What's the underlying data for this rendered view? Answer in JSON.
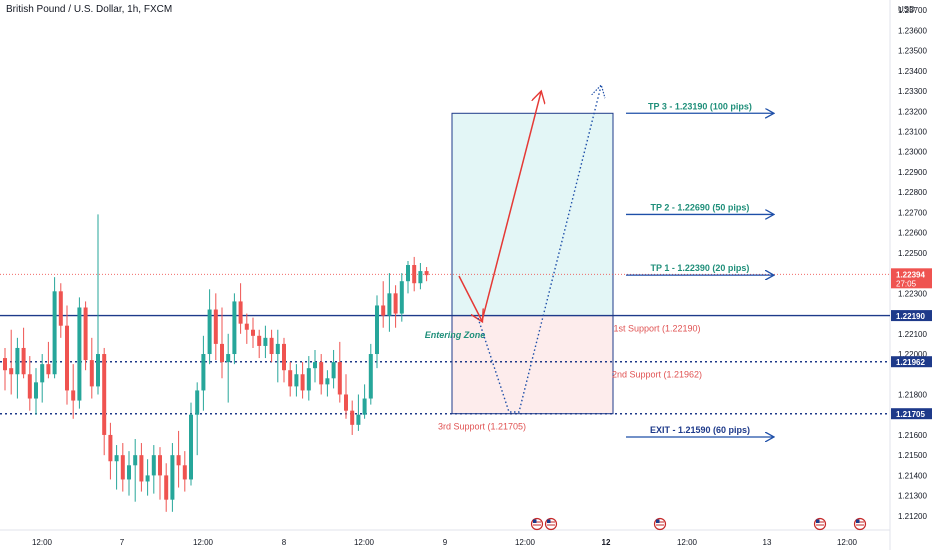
{
  "header": {
    "title": "British Pound / U.S. Dollar, 1h, FXCM",
    "currency": "USD"
  },
  "colors": {
    "bull": "#26a69a",
    "bear": "#ef5350",
    "navy": "#1e3a8a",
    "arrow": "#1e4fa8",
    "tp_text": "#1f8f7a",
    "support_text": "#e05252",
    "red_arrow": "#e53935",
    "zone_top": "#e3f6f6",
    "zone_bottom": "#fdecec",
    "badge": "#1e3a8a"
  },
  "chart_data": {
    "type": "candlestick",
    "symbol": "GBPUSD",
    "timeframe": "1h",
    "ylim": [
      1.2114,
      1.2375
    ],
    "y_ticks": [
      "1.23700",
      "1.23600",
      "1.23500",
      "1.23400",
      "1.23300",
      "1.23200",
      "1.23100",
      "1.23000",
      "1.22900",
      "1.22800",
      "1.22700",
      "1.22600",
      "1.22500",
      "1.22300",
      "1.22100",
      "1.22000",
      "1.21800",
      "1.21600",
      "1.21500",
      "1.21400",
      "1.21300",
      "1.21200"
    ],
    "x_ticks": [
      "12:00",
      "7",
      "12:00",
      "8",
      "12:00",
      "9",
      "12:00",
      "12",
      "12:00",
      "13",
      "12:00"
    ],
    "levels": [
      {
        "name": "TP 3 - 1.23190 (100 pips)",
        "value": 1.2319,
        "role": "tp"
      },
      {
        "name": "TP 2 - 1.22690 (50 pips)",
        "value": 1.2269,
        "role": "tp"
      },
      {
        "name": "TP 1 - 1.22390 (20 pips)",
        "value": 1.2239,
        "role": "tp"
      },
      {
        "name": "1st Support (1.22190)",
        "value": 1.2219,
        "role": "support"
      },
      {
        "name": "2nd Support (1.21962)",
        "value": 1.21962,
        "role": "support"
      },
      {
        "name": "3rd Support (1.21705)",
        "value": 1.21705,
        "role": "support"
      },
      {
        "name": "EXIT - 1.21590 (60 pips)",
        "value": 1.2159,
        "role": "exit"
      }
    ],
    "price_badges": [
      {
        "label": "1.22394",
        "sub": "27:05",
        "value": 1.22394,
        "color": "#ef5350"
      },
      {
        "label": "1.22190",
        "value": 1.2219,
        "color": "#1e3a8a"
      },
      {
        "label": "1.21962",
        "value": 1.21962,
        "color": "#1e3a8a"
      },
      {
        "label": "1.21705",
        "value": 1.21705,
        "color": "#1e3a8a"
      }
    ],
    "annotation": "Entering Zone",
    "zone": {
      "top": 1.2319,
      "mid": 1.2219,
      "bottom": 1.21705
    },
    "candles": [
      [
        1.2198,
        1.2203,
        1.2182,
        1.2192
      ],
      [
        1.2193,
        1.2212,
        1.218,
        1.219
      ],
      [
        1.219,
        1.2208,
        1.2178,
        1.2203
      ],
      [
        1.2203,
        1.2213,
        1.2188,
        1.219
      ],
      [
        1.219,
        1.2199,
        1.2172,
        1.2178
      ],
      [
        1.2178,
        1.2193,
        1.217,
        1.2186
      ],
      [
        1.2186,
        1.22,
        1.2176,
        1.2195
      ],
      [
        1.2195,
        1.2206,
        1.2188,
        1.219
      ],
      [
        1.219,
        1.2238,
        1.2188,
        1.2231
      ],
      [
        1.2231,
        1.2235,
        1.2208,
        1.2214
      ],
      [
        1.2214,
        1.2224,
        1.2175,
        1.2182
      ],
      [
        1.2182,
        1.2195,
        1.2168,
        1.2177
      ],
      [
        1.2177,
        1.2228,
        1.2173,
        1.2223
      ],
      [
        1.2223,
        1.2226,
        1.2192,
        1.2197
      ],
      [
        1.2197,
        1.2208,
        1.2178,
        1.2184
      ],
      [
        1.2184,
        1.2269,
        1.218,
        1.22
      ],
      [
        1.22,
        1.2203,
        1.215,
        1.216
      ],
      [
        1.216,
        1.2166,
        1.2138,
        1.2147
      ],
      [
        1.2147,
        1.2155,
        1.2133,
        1.215
      ],
      [
        1.215,
        1.2156,
        1.2132,
        1.2138
      ],
      [
        1.2138,
        1.2152,
        1.213,
        1.2145
      ],
      [
        1.2145,
        1.2158,
        1.2127,
        1.215
      ],
      [
        1.215,
        1.2156,
        1.2132,
        1.2137
      ],
      [
        1.2137,
        1.2148,
        1.213,
        1.214
      ],
      [
        1.214,
        1.2155,
        1.2131,
        1.215
      ],
      [
        1.215,
        1.2154,
        1.2128,
        1.214
      ],
      [
        1.214,
        1.2146,
        1.2122,
        1.2128
      ],
      [
        1.2128,
        1.2156,
        1.2122,
        1.215
      ],
      [
        1.215,
        1.2162,
        1.2134,
        1.2145
      ],
      [
        1.2145,
        1.2152,
        1.2132,
        1.2138
      ],
      [
        1.2138,
        1.2176,
        1.2135,
        1.217
      ],
      [
        1.217,
        1.2186,
        1.215,
        1.2182
      ],
      [
        1.2182,
        1.2209,
        1.2172,
        1.22
      ],
      [
        1.22,
        1.2232,
        1.2195,
        1.2222
      ],
      [
        1.2222,
        1.223,
        1.2197,
        1.2205
      ],
      [
        1.2205,
        1.2223,
        1.2188,
        1.2196
      ],
      [
        1.2196,
        1.221,
        1.2176,
        1.22
      ],
      [
        1.22,
        1.223,
        1.2195,
        1.2226
      ],
      [
        1.2226,
        1.2235,
        1.221,
        1.2215
      ],
      [
        1.2215,
        1.222,
        1.2205,
        1.2212
      ],
      [
        1.2212,
        1.2218,
        1.2203,
        1.2209
      ],
      [
        1.2209,
        1.2212,
        1.2198,
        1.2204
      ],
      [
        1.2204,
        1.2214,
        1.2198,
        1.2208
      ],
      [
        1.2208,
        1.2212,
        1.2196,
        1.22
      ],
      [
        1.22,
        1.2212,
        1.2186,
        1.2205
      ],
      [
        1.2205,
        1.2208,
        1.2186,
        1.2192
      ],
      [
        1.2192,
        1.2196,
        1.2179,
        1.2184
      ],
      [
        1.2184,
        1.2195,
        1.2179,
        1.219
      ],
      [
        1.219,
        1.2196,
        1.2178,
        1.2182
      ],
      [
        1.2182,
        1.2199,
        1.2177,
        1.2193
      ],
      [
        1.2193,
        1.2202,
        1.2186,
        1.2196
      ],
      [
        1.2196,
        1.22,
        1.218,
        1.2185
      ],
      [
        1.2185,
        1.2192,
        1.2179,
        1.2188
      ],
      [
        1.2188,
        1.2202,
        1.2183,
        1.2196
      ],
      [
        1.2196,
        1.2206,
        1.2176,
        1.218
      ],
      [
        1.218,
        1.219,
        1.2168,
        1.2172
      ],
      [
        1.2172,
        1.2177,
        1.216,
        1.2165
      ],
      [
        1.2165,
        1.218,
        1.2162,
        1.217
      ],
      [
        1.217,
        1.2185,
        1.2168,
        1.2178
      ],
      [
        1.2178,
        1.2205,
        1.2175,
        1.22
      ],
      [
        1.22,
        1.2229,
        1.2193,
        1.2224
      ],
      [
        1.2224,
        1.2236,
        1.2213,
        1.2219
      ],
      [
        1.2219,
        1.224,
        1.2211,
        1.223
      ],
      [
        1.223,
        1.2234,
        1.2213,
        1.222
      ],
      [
        1.222,
        1.224,
        1.2216,
        1.2236
      ],
      [
        1.2236,
        1.2246,
        1.223,
        1.2244
      ],
      [
        1.2244,
        1.2248,
        1.2231,
        1.2235
      ],
      [
        1.2235,
        1.2245,
        1.2232,
        1.2241
      ],
      [
        1.2241,
        1.2243,
        1.2236,
        1.2239
      ]
    ]
  }
}
